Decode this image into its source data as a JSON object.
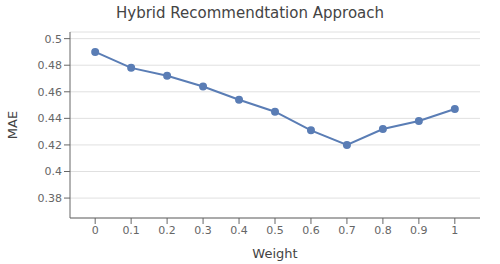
{
  "chart_data": {
    "type": "line",
    "title": "Hybrid Recommendtation Approach",
    "xlabel": "Weight",
    "ylabel": "MAE",
    "x": [
      0.0,
      0.1,
      0.2,
      0.3,
      0.4,
      0.5,
      0.6,
      0.7,
      0.8,
      0.9,
      1.0
    ],
    "values": [
      0.49,
      0.478,
      0.472,
      0.464,
      0.454,
      0.445,
      0.431,
      0.42,
      0.432,
      0.438,
      0.447
    ],
    "xlim": [
      -0.07,
      1.07
    ],
    "xticks": [
      0.0,
      0.1,
      0.2,
      0.3,
      0.4,
      0.5,
      0.6,
      0.7,
      0.8,
      0.9,
      1.0
    ],
    "ylim": [
      0.365,
      0.505
    ],
    "yticks": [
      0.38,
      0.4,
      0.42,
      0.44,
      0.46,
      0.48,
      0.5
    ],
    "color": "#5a7db5",
    "marker": "o",
    "grid": true
  }
}
